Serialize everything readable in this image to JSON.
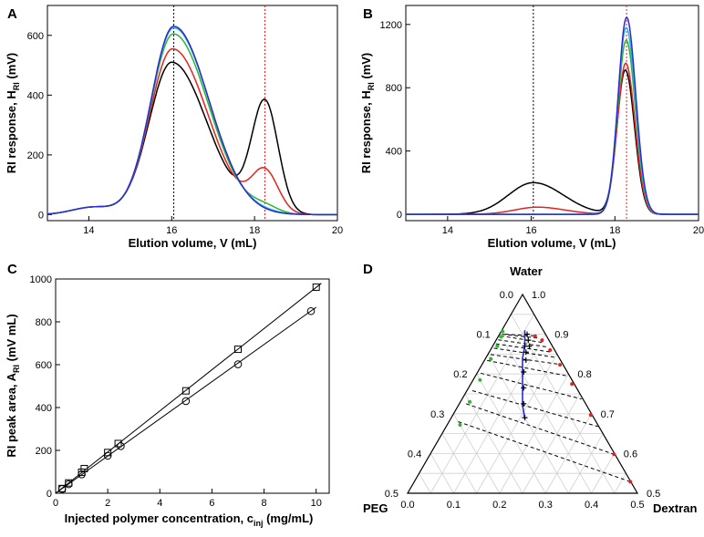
{
  "figure": {
    "panels": {
      "A": {
        "letter": "A"
      },
      "B": {
        "letter": "B"
      },
      "C": {
        "letter": "C"
      },
      "D": {
        "letter": "D"
      }
    }
  },
  "chart_data": [
    {
      "panel": "A",
      "type": "line",
      "xlabel": "Elution volume, V (mL)",
      "ylabel": "RI response, H",
      "ylabel_sub": "RI",
      "ylabel_unit": " (mV)",
      "xlim": [
        13,
        20
      ],
      "ylim": [
        -20,
        700
      ],
      "xticks": [
        14,
        16,
        18,
        20
      ],
      "yticks": [
        0,
        200,
        400,
        600
      ],
      "vlines": [
        {
          "x": 16.05,
          "color": "#000000"
        },
        {
          "x": 18.25,
          "color": "#e8221c"
        }
      ],
      "series": [
        {
          "name": "black",
          "color": "#000000",
          "peaks": [
            {
              "mu": 16.0,
              "sigma": 0.55,
              "tail": 1.55,
              "h": 510
            },
            {
              "mu": 18.25,
              "sigma": 0.32,
              "tail": 1.0,
              "h": 370
            },
            {
              "mu": 14.1,
              "sigma": 0.5,
              "tail": 1.0,
              "h": 25
            }
          ]
        },
        {
          "name": "red",
          "color": "#e8221c",
          "peaks": [
            {
              "mu": 16.02,
              "sigma": 0.55,
              "tail": 1.55,
              "h": 555
            },
            {
              "mu": 18.25,
              "sigma": 0.32,
              "tail": 1.0,
              "h": 138
            },
            {
              "mu": 14.1,
              "sigma": 0.5,
              "tail": 1.0,
              "h": 25
            }
          ]
        },
        {
          "name": "green",
          "color": "#2fb52f",
          "peaks": [
            {
              "mu": 16.04,
              "sigma": 0.55,
              "tail": 1.55,
              "h": 605
            },
            {
              "mu": 18.25,
              "sigma": 0.32,
              "tail": 1.0,
              "h": 20
            },
            {
              "mu": 14.1,
              "sigma": 0.5,
              "tail": 1.0,
              "h": 25
            }
          ]
        },
        {
          "name": "cyan",
          "color": "#27b6d6",
          "peaks": [
            {
              "mu": 16.05,
              "sigma": 0.55,
              "tail": 1.55,
              "h": 625
            },
            {
              "mu": 18.25,
              "sigma": 0.32,
              "tail": 1.0,
              "h": 4
            },
            {
              "mu": 14.1,
              "sigma": 0.5,
              "tail": 1.0,
              "h": 25
            }
          ]
        },
        {
          "name": "blue",
          "color": "#2a2ad6",
          "peaks": [
            {
              "mu": 16.05,
              "sigma": 0.55,
              "tail": 1.55,
              "h": 630
            },
            {
              "mu": 14.1,
              "sigma": 0.5,
              "tail": 1.0,
              "h": 25
            }
          ]
        }
      ]
    },
    {
      "panel": "B",
      "type": "line",
      "xlabel": "Elution volume, V (mL)",
      "ylabel": "RI response, H",
      "ylabel_sub": "RI",
      "ylabel_unit": " (mV)",
      "xlim": [
        13,
        20
      ],
      "ylim": [
        -40,
        1320
      ],
      "xticks": [
        14,
        16,
        18,
        20
      ],
      "yticks": [
        0,
        400,
        800,
        1200
      ],
      "vlines": [
        {
          "x": 16.05,
          "color": "#000000"
        },
        {
          "x": 18.28,
          "color": "#e8221c"
        }
      ],
      "series": [
        {
          "name": "black",
          "color": "#000000",
          "peaks": [
            {
              "mu": 16.05,
              "sigma": 0.6,
              "tail": 1.2,
              "h": 200
            },
            {
              "mu": 18.25,
              "sigma": 0.2,
              "tail": 1.1,
              "h": 910
            }
          ]
        },
        {
          "name": "red",
          "color": "#e8221c",
          "peaks": [
            {
              "mu": 16.15,
              "sigma": 0.55,
              "tail": 1.2,
              "h": 45
            },
            {
              "mu": 18.26,
              "sigma": 0.2,
              "tail": 1.1,
              "h": 955
            }
          ]
        },
        {
          "name": "green",
          "color": "#2fb52f",
          "peaks": [
            {
              "mu": 18.27,
              "sigma": 0.2,
              "tail": 1.1,
              "h": 1100
            }
          ]
        },
        {
          "name": "cyan",
          "color": "#27b6d6",
          "peaks": [
            {
              "mu": 18.27,
              "sigma": 0.2,
              "tail": 1.1,
              "h": 1180
            }
          ]
        },
        {
          "name": "blue",
          "color": "#2a2ad6",
          "peaks": [
            {
              "mu": 18.28,
              "sigma": 0.2,
              "tail": 1.1,
              "h": 1245
            }
          ]
        }
      ]
    },
    {
      "panel": "C",
      "type": "scatter",
      "xlabel": "Injected polymer concentration, c",
      "xlabel_sub": "inj",
      "xlabel_unit": " (mg/mL)",
      "ylabel": "RI peak area, A",
      "ylabel_sub": "RI",
      "ylabel_unit": " (mV mL)",
      "xlim": [
        0,
        10.5
      ],
      "ylim": [
        0,
        1000
      ],
      "xticks": [
        0,
        2,
        4,
        6,
        8,
        10
      ],
      "yticks": [
        0,
        200,
        400,
        600,
        800,
        1000
      ],
      "series": [
        {
          "name": "squares",
          "marker": "square",
          "x": [
            0.25,
            0.5,
            1.0,
            1.1,
            2.0,
            2.4,
            5.0,
            7.0,
            10.0
          ],
          "y": [
            22,
            48,
            98,
            115,
            190,
            232,
            478,
            672,
            962
          ],
          "fit": [
            0,
            0,
            10.2,
            980
          ]
        },
        {
          "name": "circles",
          "marker": "circle",
          "x": [
            0.25,
            0.5,
            1.0,
            2.0,
            2.5,
            5.0,
            7.0,
            9.8
          ],
          "y": [
            20,
            42,
            88,
            175,
            220,
            430,
            602,
            850
          ],
          "fit": [
            0,
            0,
            10.0,
            868
          ]
        }
      ]
    },
    {
      "panel": "D",
      "type": "ternary",
      "vertex_labels": {
        "top": "Water",
        "left": "PEG",
        "right": "Dextran"
      },
      "peg_ticks": [
        "0.0",
        "0.1",
        "0.2",
        "0.3",
        "0.4",
        "0.5"
      ],
      "dextran_ticks": [
        "0.0",
        "0.1",
        "0.2",
        "0.3",
        "0.4",
        "0.5"
      ],
      "water_ticks": [
        "1.0",
        "0.9",
        "0.8",
        "0.7",
        "0.6",
        "0.5"
      ],
      "binodal_green": [
        [
          0.09,
          0.003
        ],
        [
          0.1,
          0.006
        ],
        [
          0.12,
          0.01
        ],
        [
          0.15,
          0.012
        ],
        [
          0.2,
          0.015
        ],
        [
          0.25,
          0.02
        ],
        [
          0.3,
          0.028
        ]
      ],
      "binodal_red": [
        [
          0.025,
          0.08
        ],
        [
          0.015,
          0.1
        ],
        [
          0.01,
          0.13
        ],
        [
          0.007,
          0.17
        ],
        [
          0.005,
          0.22
        ],
        [
          0.003,
          0.3
        ],
        [
          0.002,
          0.4
        ],
        [
          0.001,
          0.47
        ]
      ],
      "tie_lines": [
        [
          [
            0.088,
            0.012
          ],
          [
            0.026,
            0.078
          ]
        ],
        [
          [
            0.095,
            0.005
          ],
          [
            0.02,
            0.09
          ]
        ],
        [
          [
            0.1,
            0.004
          ],
          [
            0.016,
            0.105
          ]
        ],
        [
          [
            0.11,
            0.004
          ],
          [
            0.012,
            0.12
          ]
        ],
        [
          [
            0.12,
            0.004
          ],
          [
            0.01,
            0.135
          ]
        ],
        [
          [
            0.13,
            0.005
          ],
          [
            0.008,
            0.15
          ]
        ],
        [
          [
            0.145,
            0.006
          ],
          [
            0.006,
            0.17
          ]
        ],
        [
          [
            0.16,
            0.006
          ],
          [
            0.005,
            0.2
          ]
        ],
        [
          [
            0.19,
            0.008
          ],
          [
            0.003,
            0.26
          ]
        ],
        [
          [
            0.23,
            0.012
          ],
          [
            0.002,
            0.33
          ]
        ],
        [
          [
            0.26,
            0.015
          ],
          [
            0.002,
            0.4
          ]
        ],
        [
          [
            0.3,
            0.02
          ],
          [
            0.001,
            0.47
          ]
        ]
      ],
      "feed_points": [
        [
          0.04,
          0.06
        ],
        [
          0.045,
          0.07
        ],
        [
          0.05,
          0.08
        ],
        [
          0.06,
          0.07
        ],
        [
          0.065,
          0.08
        ],
        [
          0.075,
          0.09
        ],
        [
          0.095,
          0.1
        ],
        [
          0.115,
          0.12
        ],
        [
          0.135,
          0.14
        ],
        [
          0.15,
          0.16
        ]
      ],
      "blue_line": [
        [
          0.04,
          0.05
        ],
        [
          0.06,
          0.07
        ],
        [
          0.08,
          0.08
        ],
        [
          0.1,
          0.1
        ],
        [
          0.12,
          0.12
        ],
        [
          0.14,
          0.14
        ],
        [
          0.15,
          0.16
        ]
      ]
    }
  ]
}
